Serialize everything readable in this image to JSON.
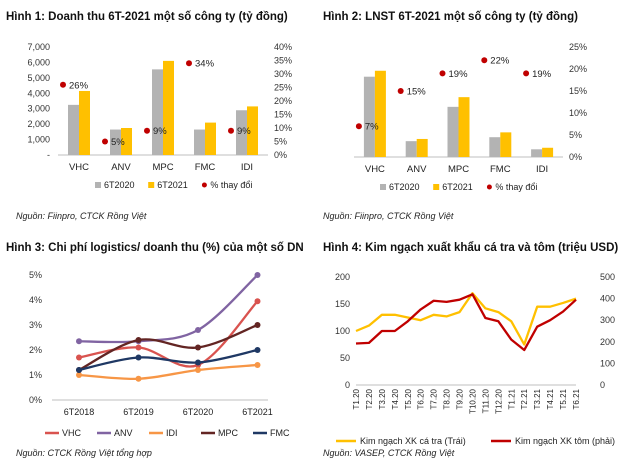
{
  "chart_data": [
    {
      "type": "bar",
      "title": "Hình 1: Doanh thu 6T-2021 một số công ty (tỷ đồng)",
      "source": "Nguồn: Fiinpro, CTCK Rồng Việt",
      "categories": [
        "VHC",
        "ANV",
        "MPC",
        "FMC",
        "IDI"
      ],
      "series": [
        {
          "name": "6T2020",
          "values": [
            3250,
            1650,
            5550,
            1650,
            2900
          ],
          "color": "#b3b3b3",
          "axis": "left"
        },
        {
          "name": "6T2021",
          "values": [
            4150,
            1750,
            6100,
            2100,
            3150
          ],
          "color": "#ffc000",
          "axis": "left"
        },
        {
          "name": "% thay đổi",
          "values": [
            26,
            5,
            9,
            34,
            9
          ],
          "color": "#c00000",
          "axis": "right",
          "marker": "dot"
        }
      ],
      "point_labels": [
        "26%",
        "5%",
        "9%",
        "34%",
        "9%"
      ],
      "ylim": [
        0,
        7000
      ],
      "yticks": [
        "-",
        "1,000",
        "2,000",
        "3,000",
        "4,000",
        "5,000",
        "6,000",
        "7,000"
      ],
      "y2lim": [
        0,
        40
      ],
      "y2ticks": [
        "0%",
        "5%",
        "10%",
        "15%",
        "20%",
        "25%",
        "30%",
        "35%",
        "40%"
      ],
      "legend_position": "bottom"
    },
    {
      "type": "bar",
      "title": "Hình 2: LNST 6T-2021 một số công ty (tỷ đồng)",
      "source": "Nguồn: Fiinpro, CTCK Rồng Việt",
      "categories": [
        "VHC",
        "ANV",
        "MPC",
        "FMC",
        "IDI"
      ],
      "series": [
        {
          "name": "6T2020",
          "values": [
            365,
            72,
            228,
            90,
            35
          ],
          "color": "#b3b3b3",
          "axis": "left"
        },
        {
          "name": "6T2021",
          "values": [
            392,
            82,
            272,
            112,
            42
          ],
          "color": "#ffc000",
          "axis": "left"
        },
        {
          "name": "% thay đổi",
          "values": [
            7,
            15,
            19,
            22,
            19
          ],
          "color": "#c00000",
          "axis": "right",
          "marker": "dot"
        }
      ],
      "point_labels": [
        "7%",
        "15%",
        "19%",
        "22%",
        "19%"
      ],
      "ylim": [
        0,
        500
      ],
      "y2lim": [
        0,
        25
      ],
      "y2ticks": [
        "0%",
        "5%",
        "10%",
        "15%",
        "20%",
        "25%"
      ],
      "legend_position": "bottom"
    },
    {
      "type": "line",
      "title": "Hình 3: Chi phí logistics/ doanh thu (%) của một số DN",
      "source": "Nguồn: CTCK Rồng Việt tổng hợp",
      "categories": [
        "6T2018",
        "6T2019",
        "6T2020",
        "6T2021"
      ],
      "series": [
        {
          "name": "VHC",
          "values": [
            1.7,
            2.1,
            1.4,
            3.95
          ],
          "color": "#d9534f"
        },
        {
          "name": "ANV",
          "values": [
            2.35,
            2.35,
            2.8,
            5.0
          ],
          "color": "#8064a2"
        },
        {
          "name": "IDI",
          "values": [
            1.0,
            0.85,
            1.2,
            1.4
          ],
          "color": "#f79646"
        },
        {
          "name": "MPC",
          "values": [
            1.2,
            2.4,
            2.1,
            3.0
          ],
          "color": "#632523"
        },
        {
          "name": "FMC",
          "values": [
            1.2,
            1.7,
            1.5,
            2.0
          ],
          "color": "#1f3864"
        }
      ],
      "ylim": [
        0,
        5
      ],
      "yticks": [
        "0%",
        "1%",
        "2%",
        "3%",
        "4%",
        "5%"
      ],
      "smooth": true,
      "legend_position": "bottom"
    },
    {
      "type": "line",
      "title": "Hình 4: Kim ngạch xuất khẩu cá tra và tôm (triệu USD)",
      "source": "Nguồn: VASEP, CTCK Rồng Việt",
      "x": [
        "T1.20",
        "T2.20",
        "T3.20",
        "T4.20",
        "T5.20",
        "T6.20",
        "T7.20",
        "T8.20",
        "T9.20",
        "T10.20",
        "T11.20",
        "T12.20",
        "T1.21",
        "T2.21",
        "T3.21",
        "T4.21",
        "T5.21",
        "T6.21"
      ],
      "series": [
        {
          "name": "Kim ngạch XK cá tra (Trái)",
          "axis": "left",
          "color": "#ffc000",
          "values": [
            100,
            110,
            130,
            130,
            125,
            120,
            130,
            127,
            135,
            170,
            142,
            135,
            118,
            75,
            145,
            145,
            152,
            160
          ]
        },
        {
          "name": "Kim ngạch XK tôm (phải)",
          "axis": "right",
          "color": "#c00000",
          "values": [
            192,
            195,
            250,
            250,
            295,
            350,
            390,
            385,
            395,
            420,
            310,
            295,
            210,
            162,
            270,
            300,
            340,
            395
          ]
        }
      ],
      "ylim": [
        0,
        200
      ],
      "yticks": [
        "0",
        "50",
        "100",
        "150",
        "200"
      ],
      "y2lim": [
        0,
        500
      ],
      "y2ticks": [
        "0",
        "100",
        "200",
        "300",
        "400",
        "500"
      ],
      "legend_position": "bottom"
    }
  ]
}
